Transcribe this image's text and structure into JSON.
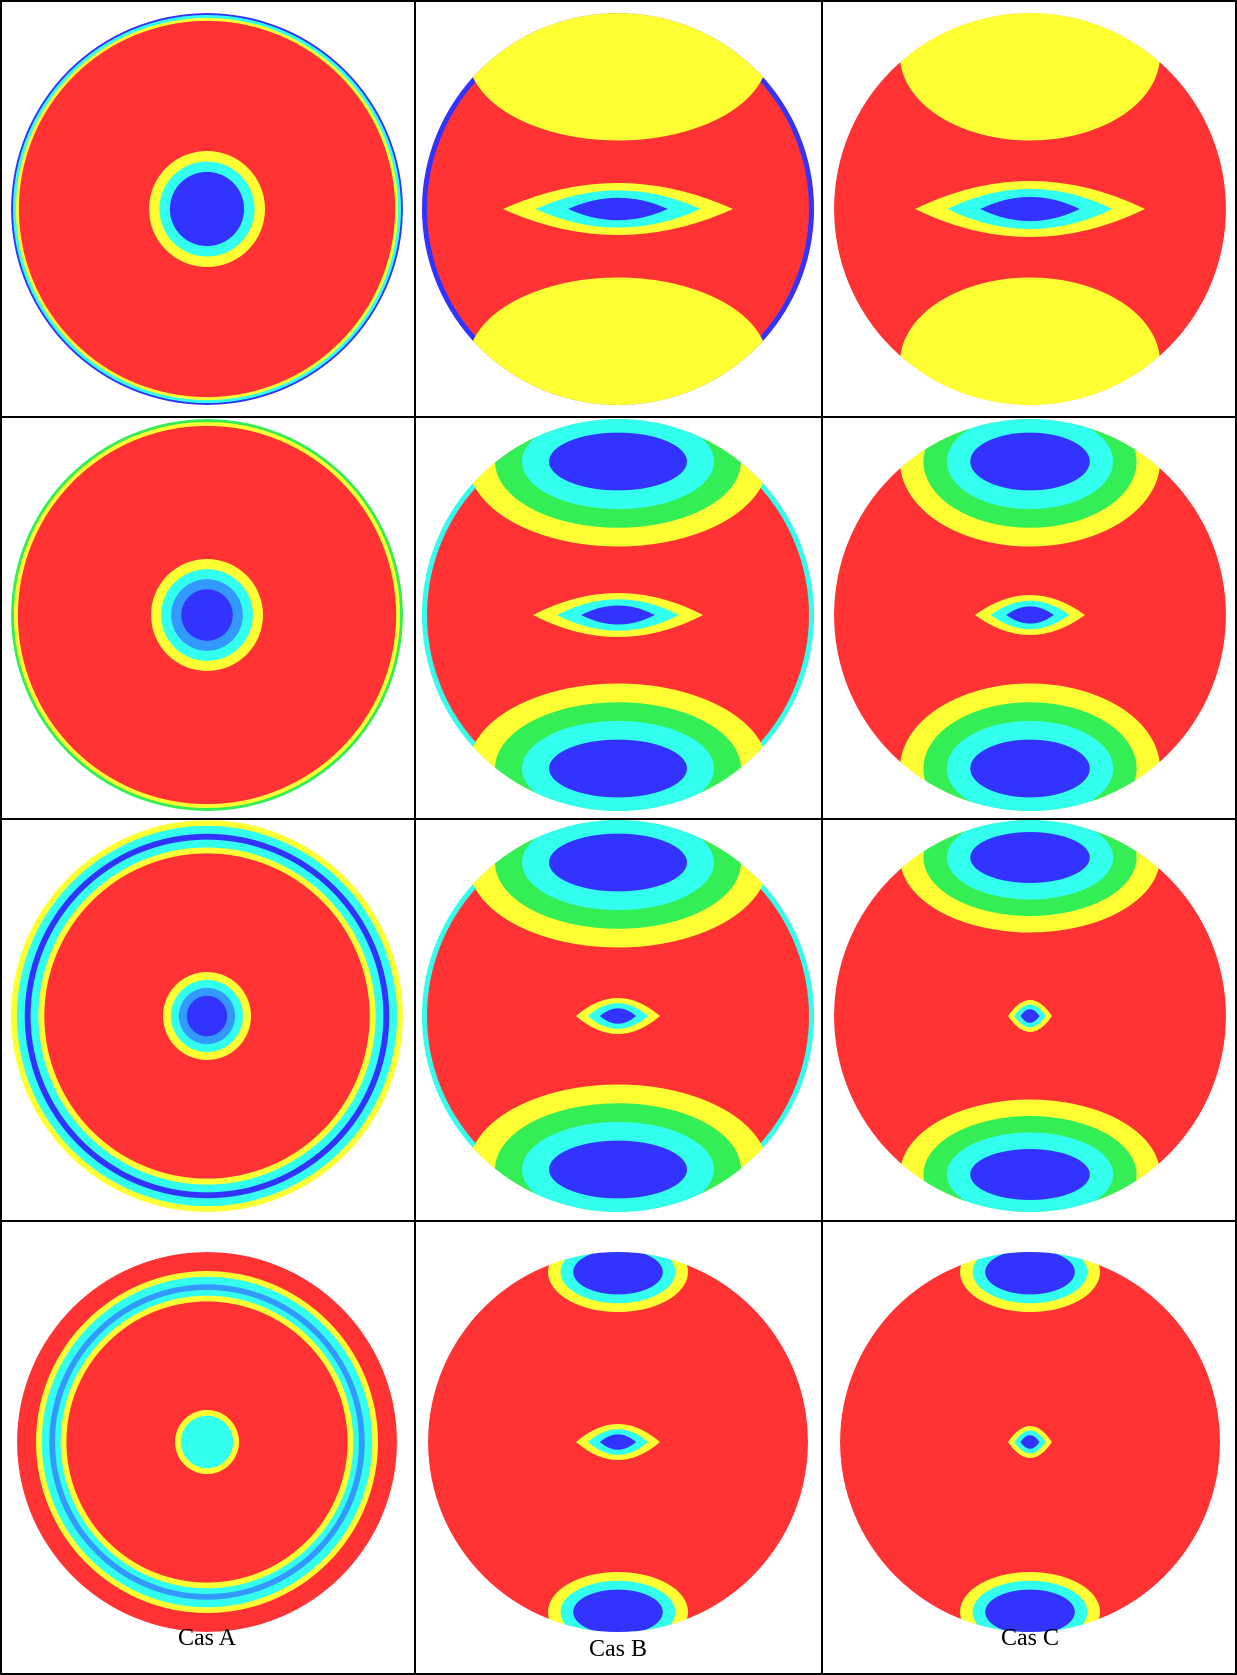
{
  "captions": [
    "Cas A",
    "Cas B",
    "Cas C"
  ]
}
